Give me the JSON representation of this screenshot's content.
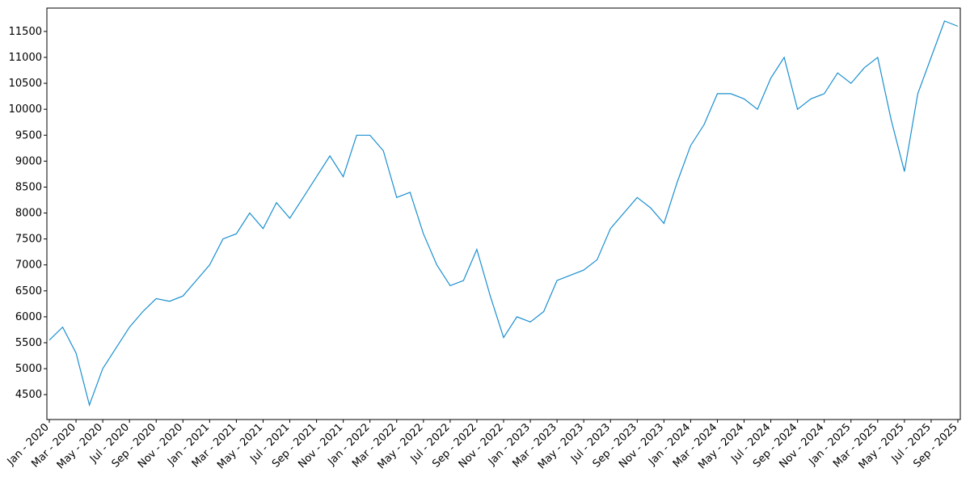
{
  "chart_data": {
    "type": "line",
    "x": [
      "2020-01",
      "2020-02",
      "2020-03",
      "2020-04",
      "2020-05",
      "2020-06",
      "2020-07",
      "2020-08",
      "2020-09",
      "2020-10",
      "2020-11",
      "2020-12",
      "2021-01",
      "2021-02",
      "2021-03",
      "2021-04",
      "2021-05",
      "2021-06",
      "2021-07",
      "2021-08",
      "2021-09",
      "2021-10",
      "2021-11",
      "2021-12",
      "2022-01",
      "2022-02",
      "2022-03",
      "2022-04",
      "2022-05",
      "2022-06",
      "2022-07",
      "2022-08",
      "2022-09",
      "2022-10",
      "2022-11",
      "2022-12",
      "2023-01",
      "2023-02",
      "2023-03",
      "2023-04",
      "2023-05",
      "2023-06",
      "2023-07",
      "2023-08",
      "2023-09",
      "2023-10",
      "2023-11",
      "2023-12",
      "2024-01",
      "2024-02",
      "2024-03",
      "2024-04",
      "2024-05",
      "2024-06",
      "2024-07",
      "2024-08",
      "2024-09",
      "2024-10",
      "2024-11",
      "2024-12",
      "2025-01",
      "2025-02",
      "2025-03",
      "2025-04",
      "2025-05",
      "2025-06",
      "2025-07",
      "2025-08",
      "2025-09"
    ],
    "series": [
      {
        "color": "#1a8fd0",
        "values": [
          5550,
          5800,
          5300,
          4300,
          5000,
          5400,
          5800,
          6100,
          6350,
          6300,
          6400,
          6700,
          7000,
          7500,
          7600,
          8000,
          7700,
          8200,
          7900,
          8300,
          8700,
          9100,
          8700,
          9500,
          9500,
          9200,
          8300,
          8400,
          7600,
          7000,
          6600,
          6700,
          7300,
          6400,
          5600,
          6000,
          5900,
          6100,
          6700,
          6800,
          6900,
          7100,
          7700,
          8000,
          8300,
          8100,
          7800,
          8600,
          9300,
          9700,
          10300,
          10300,
          10200,
          10000,
          10600,
          11000,
          10000,
          10200,
          10300,
          10700,
          10500,
          10800,
          11000,
          9800,
          8800,
          10300,
          11000,
          11700,
          11600
        ]
      }
    ],
    "ylim": [
      4020,
      11950
    ],
    "yticks": [
      4500,
      5000,
      5500,
      6000,
      6500,
      7000,
      7500,
      8000,
      8500,
      9000,
      9500,
      10000,
      10500,
      11000,
      11500
    ],
    "xlim": [
      "2020-01",
      "2025-09"
    ],
    "xticks": [
      {
        "value": "2020-01",
        "label": "Jan - 2020"
      },
      {
        "value": "2020-03",
        "label": "Mar - 2020"
      },
      {
        "value": "2020-05",
        "label": "May - 2020"
      },
      {
        "value": "2020-07",
        "label": "Jul - 2020"
      },
      {
        "value": "2020-09",
        "label": "Sep - 2020"
      },
      {
        "value": "2020-11",
        "label": "Nov - 2020"
      },
      {
        "value": "2021-01",
        "label": "Jan - 2021"
      },
      {
        "value": "2021-03",
        "label": "Mar - 2021"
      },
      {
        "value": "2021-05",
        "label": "May - 2021"
      },
      {
        "value": "2021-07",
        "label": "Jul - 2021"
      },
      {
        "value": "2021-09",
        "label": "Sep - 2021"
      },
      {
        "value": "2021-11",
        "label": "Nov - 2021"
      },
      {
        "value": "2022-01",
        "label": "Jan - 2022"
      },
      {
        "value": "2022-03",
        "label": "Mar - 2022"
      },
      {
        "value": "2022-05",
        "label": "May - 2022"
      },
      {
        "value": "2022-07",
        "label": "Jul - 2022"
      },
      {
        "value": "2022-09",
        "label": "Sep - 2022"
      },
      {
        "value": "2022-11",
        "label": "Nov - 2022"
      },
      {
        "value": "2023-01",
        "label": "Jan - 2023"
      },
      {
        "value": "2023-03",
        "label": "Mar - 2023"
      },
      {
        "value": "2023-05",
        "label": "May - 2023"
      },
      {
        "value": "2023-07",
        "label": "Jul - 2023"
      },
      {
        "value": "2023-09",
        "label": "Sep - 2023"
      },
      {
        "value": "2023-11",
        "label": "Nov - 2023"
      },
      {
        "value": "2024-01",
        "label": "Jan - 2024"
      },
      {
        "value": "2024-03",
        "label": "Mar - 2024"
      },
      {
        "value": "2024-05",
        "label": "May - 2024"
      },
      {
        "value": "2024-07",
        "label": "Jul - 2024"
      },
      {
        "value": "2024-09",
        "label": "Sep - 2024"
      },
      {
        "value": "2024-11",
        "label": "Nov - 2024"
      },
      {
        "value": "2025-01",
        "label": "Jan - 2025"
      },
      {
        "value": "2025-03",
        "label": "Mar - 2025"
      },
      {
        "value": "2025-05",
        "label": "May - 2025"
      },
      {
        "value": "2025-07",
        "label": "Jul - 2025"
      },
      {
        "value": "2025-09",
        "label": "Sep - 2025"
      }
    ]
  }
}
